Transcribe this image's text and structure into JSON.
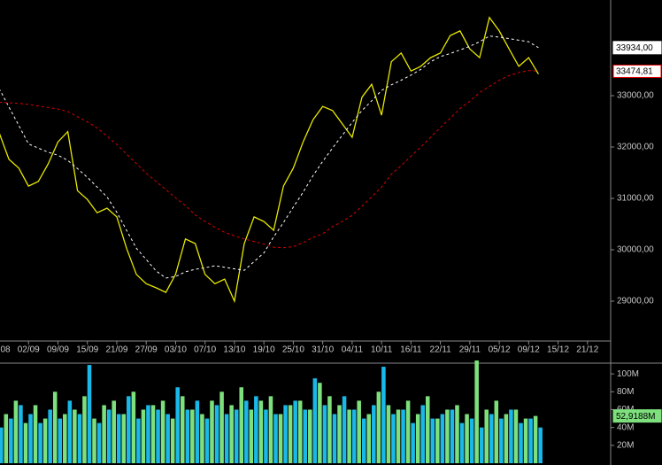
{
  "chart_data": [
    {
      "type": "line",
      "categories": [
        "08",
        null,
        null,
        "02/09",
        null,
        null,
        "09/09",
        null,
        null,
        "15/09",
        null,
        null,
        "21/09",
        null,
        null,
        "27/09",
        null,
        null,
        "03/10",
        null,
        null,
        "07/10",
        null,
        null,
        "13/10",
        null,
        null,
        "19/10",
        null,
        null,
        "25/10",
        null,
        null,
        "31/10",
        null,
        null,
        "04/11",
        null,
        null,
        "10/11",
        null,
        null,
        "16/11",
        null,
        null,
        "22/11",
        null,
        null,
        "29/11",
        null,
        null,
        "05/12",
        null,
        null,
        "09/12",
        null,
        null,
        "15/12",
        null,
        null,
        "21/12",
        null
      ],
      "ylim": [
        28224,
        34862
      ],
      "yticks": [
        {
          "value": 29000,
          "label": "29000,00"
        },
        {
          "value": 30000,
          "label": "30000,00"
        },
        {
          "value": 31000,
          "label": "31000,00"
        },
        {
          "value": 32000,
          "label": "32000,00"
        },
        {
          "value": 33000,
          "label": "33000,00"
        }
      ],
      "series": [
        {
          "color": "#e8e800",
          "dashed": false,
          "values": [
            32280,
            31760,
            31590,
            31240,
            31330,
            31670,
            32100,
            32300,
            31150,
            30980,
            30720,
            30810,
            30640,
            30030,
            29520,
            29340,
            29260,
            29170,
            29520,
            30210,
            30120,
            29520,
            29340,
            29430,
            29000,
            30120,
            30640,
            30550,
            30380,
            31240,
            31590,
            32100,
            32530,
            32790,
            32710,
            32450,
            32190,
            32970,
            33220,
            32620,
            33660,
            33830,
            33480,
            33570,
            33740,
            33830,
            34170,
            34260,
            33910,
            33740,
            34520,
            34260,
            33910,
            33570,
            33740,
            33420,
            null,
            null,
            null,
            null,
            null,
            null
          ]
        },
        {
          "color": "#ffffff",
          "dashed": true,
          "label_fill": "#ffffff",
          "values": [
            33140,
            32780,
            32420,
            32060,
            31980,
            31900,
            31840,
            31740,
            31580,
            31410,
            31220,
            31030,
            30730,
            30380,
            30030,
            29810,
            29590,
            29450,
            29480,
            29570,
            29620,
            29650,
            29690,
            29660,
            29630,
            29600,
            29770,
            29940,
            30250,
            30530,
            30830,
            31120,
            31440,
            31720,
            31980,
            32230,
            32480,
            32710,
            32900,
            33100,
            33210,
            33300,
            33400,
            33510,
            33660,
            33760,
            33820,
            33890,
            33960,
            34050,
            34160,
            34140,
            34110,
            34080,
            34050,
            33934,
            null,
            null,
            null,
            null,
            null,
            null
          ],
          "value_labels": [
            null,
            null,
            null,
            null,
            null,
            null,
            null,
            null,
            null,
            null,
            null,
            null,
            null,
            null,
            null,
            null,
            null,
            null,
            null,
            null,
            null,
            null,
            null,
            null,
            null,
            null,
            null,
            null,
            null,
            null,
            null,
            null,
            null,
            null,
            null,
            null,
            null,
            null,
            null,
            null,
            null,
            null,
            null,
            null,
            null,
            null,
            null,
            null,
            null,
            null,
            null,
            null,
            null,
            null,
            null,
            "33934,00",
            null,
            null,
            null,
            null,
            null,
            null
          ]
        },
        {
          "color": "#e00000",
          "dashed": true,
          "label_fill": "#ffffff",
          "values": [
            32870,
            32860,
            32850,
            32830,
            32800,
            32770,
            32740,
            32690,
            32590,
            32490,
            32370,
            32210,
            32050,
            31860,
            31680,
            31490,
            31330,
            31170,
            31010,
            30860,
            30680,
            30550,
            30440,
            30340,
            30270,
            30210,
            30160,
            30110,
            30050,
            30040,
            30060,
            30140,
            30240,
            30310,
            30450,
            30550,
            30670,
            30850,
            31030,
            31220,
            31470,
            31640,
            31820,
            32000,
            32190,
            32380,
            32560,
            32750,
            32890,
            33060,
            33180,
            33300,
            33390,
            33450,
            33490,
            33474.81,
            null,
            null,
            null,
            null,
            null,
            null
          ],
          "value_labels": [
            null,
            null,
            null,
            null,
            null,
            null,
            null,
            null,
            null,
            null,
            null,
            null,
            null,
            null,
            null,
            null,
            null,
            null,
            null,
            null,
            null,
            null,
            null,
            null,
            null,
            null,
            null,
            null,
            null,
            null,
            null,
            null,
            null,
            null,
            null,
            null,
            null,
            null,
            null,
            null,
            null,
            null,
            null,
            null,
            null,
            null,
            null,
            null,
            null,
            null,
            null,
            null,
            null,
            null,
            null,
            "33474,81",
            null,
            null,
            null,
            null,
            null,
            null
          ]
        }
      ]
    },
    {
      "type": "bar",
      "ylim": [
        0,
        115
      ],
      "yticks": [
        {
          "value": 20,
          "label": "20M"
        },
        {
          "value": 40,
          "label": "40M"
        },
        {
          "value": 60,
          "label": "60M"
        },
        {
          "value": 80,
          "label": "80M"
        },
        {
          "value": 100,
          "label": "100M"
        }
      ],
      "series": [
        {
          "color": "#7de07d",
          "label_fill": "#7de07d",
          "values": [
            60,
            55,
            70,
            45,
            65,
            50,
            80,
            55,
            60,
            75,
            50,
            65,
            70,
            55,
            80,
            60,
            65,
            70,
            50,
            75,
            60,
            55,
            70,
            80,
            65,
            85,
            60,
            70,
            75,
            55,
            65,
            70,
            60,
            90,
            75,
            65,
            60,
            70,
            55,
            80,
            65,
            60,
            70,
            55,
            75,
            50,
            60,
            65,
            55,
            115,
            60,
            70,
            55,
            60,
            50,
            52.9188,
            null,
            null,
            null,
            null,
            null,
            null
          ],
          "value_labels": [
            null,
            null,
            null,
            null,
            null,
            null,
            null,
            null,
            null,
            null,
            null,
            null,
            null,
            null,
            null,
            null,
            null,
            null,
            null,
            null,
            null,
            null,
            null,
            null,
            null,
            null,
            null,
            null,
            null,
            null,
            null,
            null,
            null,
            null,
            null,
            null,
            null,
            null,
            null,
            null,
            null,
            null,
            null,
            null,
            null,
            null,
            null,
            null,
            null,
            null,
            null,
            null,
            null,
            null,
            null,
            "52,9188M",
            null,
            null,
            null,
            null,
            null,
            null
          ]
        },
        {
          "color": "#1ab8e8",
          "values": [
            40,
            50,
            65,
            55,
            45,
            60,
            50,
            70,
            55,
            110,
            45,
            60,
            55,
            75,
            50,
            65,
            60,
            55,
            85,
            60,
            70,
            50,
            65,
            55,
            60,
            70,
            75,
            60,
            55,
            65,
            70,
            60,
            95,
            65,
            55,
            75,
            60,
            50,
            65,
            108,
            55,
            60,
            45,
            65,
            50,
            55,
            60,
            45,
            50,
            40,
            55,
            50,
            60,
            45,
            50,
            40,
            null,
            null,
            null,
            null,
            null,
            null
          ]
        }
      ]
    }
  ]
}
